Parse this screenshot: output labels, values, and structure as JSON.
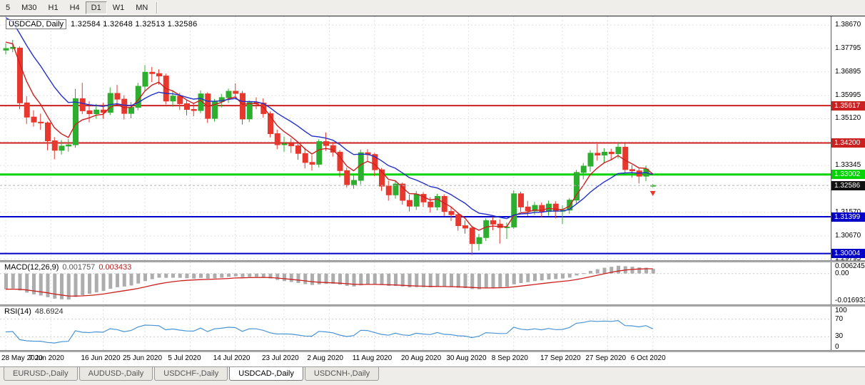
{
  "toolbar": {
    "timeframes": [
      {
        "label": "5",
        "active": false
      },
      {
        "label": "M30",
        "active": false
      },
      {
        "label": "H1",
        "active": false
      },
      {
        "label": "H4",
        "active": false
      },
      {
        "label": "D1",
        "active": true
      },
      {
        "label": "W1",
        "active": false
      },
      {
        "label": "MN",
        "active": false
      }
    ]
  },
  "chart": {
    "title_symbol": "USDCAD, Daily",
    "title_ohlc": "1.32584 1.32648 1.32513 1.32586"
  },
  "chart_data": {
    "type": "candlestick",
    "symbol": "USDCAD",
    "timeframe": "Daily",
    "colors": {
      "up": "#2eae2e",
      "down": "#e8382e",
      "ma_fast": "#cc2020",
      "ma_slow": "#2230c8",
      "hline_red": "#cc2020",
      "hline_green": "#00d400",
      "hline_blue": "#0000c8",
      "current_tag": "#111111",
      "macd_hist": "#adadad",
      "macd_signal": "#cc2020",
      "rsi_line": "#4a94d6",
      "grid": "#e0e0e0"
    },
    "main": {
      "ylim": [
        1.2975,
        1.39
      ],
      "axis_ticks": [
        "1.38670",
        "1.37795",
        "1.36895",
        "1.35995",
        "1.35120",
        "1.34245",
        "1.33345",
        "1.32470",
        "1.31570",
        "1.30670",
        "1.29795"
      ],
      "hlines": [
        {
          "price": 1.35617,
          "label": "1.35617",
          "color": "red",
          "width": 2
        },
        {
          "price": 1.342,
          "label": "1.34200",
          "color": "red",
          "width": 2
        },
        {
          "price": 1.33002,
          "label": "1.33002",
          "color": "green",
          "width": 3
        },
        {
          "price": 1.31399,
          "label": "1.31399",
          "color": "blue",
          "width": 2
        },
        {
          "price": 1.30004,
          "label": "1.30004",
          "color": "blue",
          "width": 2
        }
      ],
      "current_price": {
        "value": 1.32586,
        "label": "1.32586"
      },
      "arrow_marker": {
        "candle_index": 93
      },
      "x_labels": [
        {
          "label": "28 May 2020",
          "index": 0
        },
        {
          "label": "7 Jun 2020",
          "index": 6.5
        },
        {
          "label": "16 Jun 2020",
          "index": 14
        },
        {
          "label": "25 Jun 2020",
          "index": 20
        },
        {
          "label": "5 Jul 2020",
          "index": 26.5
        },
        {
          "label": "14 Jul 2020",
          "index": 33
        },
        {
          "label": "23 Jul 2020",
          "index": 40
        },
        {
          "label": "2 Aug 2020",
          "index": 46.5
        },
        {
          "label": "11 Aug 2020",
          "index": 53
        },
        {
          "label": "20 Aug 2020",
          "index": 60
        },
        {
          "label": "30 Aug 2020",
          "index": 66.5
        },
        {
          "label": "8 Sep 2020",
          "index": 73
        },
        {
          "label": "17 Sep 2020",
          "index": 80
        },
        {
          "label": "27 Sep 2020",
          "index": 86.5
        },
        {
          "label": "6 Oct 2020",
          "index": 93
        }
      ],
      "candles": [
        [
          1.3772,
          1.3798,
          1.3756,
          1.3778
        ],
        [
          1.3778,
          1.3811,
          1.3764,
          1.3783
        ],
        [
          1.378,
          1.3786,
          1.3548,
          1.3572
        ],
        [
          1.3572,
          1.3597,
          1.3492,
          1.3518
        ],
        [
          1.3518,
          1.3544,
          1.3482,
          1.3499
        ],
        [
          1.3499,
          1.3531,
          1.347,
          1.3496
        ],
        [
          1.3496,
          1.3501,
          1.3392,
          1.3428
        ],
        [
          1.3428,
          1.3442,
          1.3358,
          1.3392
        ],
        [
          1.3392,
          1.3431,
          1.3376,
          1.3408
        ],
        [
          1.3408,
          1.3435,
          1.3387,
          1.3413
        ],
        [
          1.3413,
          1.3625,
          1.3402,
          1.3588
        ],
        [
          1.3588,
          1.3648,
          1.3529,
          1.3542
        ],
        [
          1.3542,
          1.3578,
          1.3498,
          1.3531
        ],
        [
          1.3531,
          1.3568,
          1.3512,
          1.3545
        ],
        [
          1.3545,
          1.3572,
          1.3511,
          1.3536
        ],
        [
          1.3536,
          1.3631,
          1.3526,
          1.3608
        ],
        [
          1.3608,
          1.364,
          1.3564,
          1.3586
        ],
        [
          1.3586,
          1.3601,
          1.3509,
          1.3532
        ],
        [
          1.3532,
          1.3575,
          1.3513,
          1.3555
        ],
        [
          1.3555,
          1.3648,
          1.3544,
          1.3635
        ],
        [
          1.3635,
          1.3715,
          1.3618,
          1.3688
        ],
        [
          1.3688,
          1.3708,
          1.3651,
          1.3683
        ],
        [
          1.3683,
          1.3699,
          1.3641,
          1.3674
        ],
        [
          1.3674,
          1.3683,
          1.3566,
          1.3579
        ],
        [
          1.3579,
          1.3621,
          1.3557,
          1.3598
        ],
        [
          1.3598,
          1.361,
          1.3545,
          1.3569
        ],
        [
          1.3569,
          1.3583,
          1.3524,
          1.3547
        ],
        [
          1.3547,
          1.3572,
          1.3521,
          1.3543
        ],
        [
          1.3543,
          1.3619,
          1.3533,
          1.3606
        ],
        [
          1.3606,
          1.3612,
          1.3496,
          1.3513
        ],
        [
          1.3513,
          1.3587,
          1.3501,
          1.3577
        ],
        [
          1.3577,
          1.3606,
          1.3555,
          1.3592
        ],
        [
          1.3592,
          1.3626,
          1.3571,
          1.3616
        ],
        [
          1.3616,
          1.3646,
          1.3587,
          1.3608
        ],
        [
          1.3608,
          1.3617,
          1.349,
          1.3511
        ],
        [
          1.3511,
          1.3581,
          1.3499,
          1.3573
        ],
        [
          1.3573,
          1.3593,
          1.3548,
          1.3571
        ],
        [
          1.3571,
          1.3589,
          1.3516,
          1.3531
        ],
        [
          1.3531,
          1.3539,
          1.3441,
          1.3455
        ],
        [
          1.3455,
          1.347,
          1.3396,
          1.3413
        ],
        [
          1.3413,
          1.3444,
          1.3387,
          1.3416
        ],
        [
          1.3416,
          1.3438,
          1.3382,
          1.3409
        ],
        [
          1.3409,
          1.3417,
          1.3356,
          1.338
        ],
        [
          1.338,
          1.3402,
          1.3323,
          1.3346
        ],
        [
          1.3346,
          1.3374,
          1.3315,
          1.3339
        ],
        [
          1.3339,
          1.3434,
          1.3327,
          1.3425
        ],
        [
          1.3425,
          1.346,
          1.339,
          1.341
        ],
        [
          1.341,
          1.3424,
          1.3368,
          1.3385
        ],
        [
          1.3385,
          1.3393,
          1.329,
          1.3315
        ],
        [
          1.3315,
          1.3326,
          1.3251,
          1.3262
        ],
        [
          1.3262,
          1.3301,
          1.3246,
          1.3278
        ],
        [
          1.3278,
          1.3395,
          1.3262,
          1.3383
        ],
        [
          1.3383,
          1.3396,
          1.3351,
          1.3376
        ],
        [
          1.3376,
          1.3382,
          1.3294,
          1.3318
        ],
        [
          1.3318,
          1.3325,
          1.3238,
          1.3256
        ],
        [
          1.3256,
          1.3277,
          1.3201,
          1.3223
        ],
        [
          1.3223,
          1.3278,
          1.3209,
          1.3264
        ],
        [
          1.3264,
          1.327,
          1.3186,
          1.3202
        ],
        [
          1.3202,
          1.3224,
          1.316,
          1.318
        ],
        [
          1.318,
          1.3238,
          1.3166,
          1.3225
        ],
        [
          1.3225,
          1.3233,
          1.3177,
          1.3196
        ],
        [
          1.3196,
          1.3214,
          1.3156,
          1.3177
        ],
        [
          1.3177,
          1.3227,
          1.3164,
          1.3217
        ],
        [
          1.3217,
          1.3225,
          1.3143,
          1.316
        ],
        [
          1.316,
          1.3178,
          1.3124,
          1.3148
        ],
        [
          1.3148,
          1.3156,
          1.3087,
          1.3106
        ],
        [
          1.3106,
          1.3126,
          1.3076,
          1.3097
        ],
        [
          1.3097,
          1.3101,
          1.29948,
          1.3038
        ],
        [
          1.3038,
          1.3075,
          1.3012,
          1.3061
        ],
        [
          1.3061,
          1.3134,
          1.3048,
          1.3125
        ],
        [
          1.3125,
          1.3139,
          1.3089,
          1.3112
        ],
        [
          1.3112,
          1.313,
          1.3038,
          1.3099
        ],
        [
          1.3099,
          1.3118,
          1.3056,
          1.3101
        ],
        [
          1.3101,
          1.324,
          1.3094,
          1.3227
        ],
        [
          1.3227,
          1.3235,
          1.3159,
          1.3177
        ],
        [
          1.3177,
          1.32,
          1.3143,
          1.3162
        ],
        [
          1.3162,
          1.3196,
          1.3148,
          1.3183
        ],
        [
          1.3183,
          1.3194,
          1.3138,
          1.316
        ],
        [
          1.316,
          1.3201,
          1.3144,
          1.3188
        ],
        [
          1.3188,
          1.3199,
          1.3134,
          1.3161
        ],
        [
          1.3161,
          1.3183,
          1.3112,
          1.3165
        ],
        [
          1.3165,
          1.3211,
          1.3151,
          1.3203
        ],
        [
          1.3203,
          1.3318,
          1.319,
          1.3308
        ],
        [
          1.3308,
          1.3344,
          1.3282,
          1.3332
        ],
        [
          1.3332,
          1.3393,
          1.3311,
          1.3381
        ],
        [
          1.3381,
          1.3416,
          1.3353,
          1.3374
        ],
        [
          1.3374,
          1.34,
          1.3343,
          1.3385
        ],
        [
          1.3385,
          1.3398,
          1.3354,
          1.3379
        ],
        [
          1.3379,
          1.3421,
          1.3361,
          1.3404
        ],
        [
          1.3404,
          1.3418,
          1.3305,
          1.3319
        ],
        [
          1.3319,
          1.3336,
          1.3288,
          1.3314
        ],
        [
          1.3314,
          1.3323,
          1.3266,
          1.3294
        ],
        [
          1.3294,
          1.3334,
          1.3275,
          1.3321
        ],
        [
          1.32584,
          1.32648,
          1.32513,
          1.32586
        ]
      ]
    },
    "macd": {
      "label": "MACD(12,26,9)",
      "value_main": "0.001757",
      "value_signal": "0.003433",
      "ylim": [
        -0.0177,
        0.0068
      ],
      "axis_ticks": [
        {
          "v": 0.006245,
          "label": "0.006245"
        },
        {
          "v": 0.0,
          "label": "0.00"
        },
        {
          "v": -0.016933,
          "label": "-0.016933"
        }
      ]
    },
    "rsi": {
      "label": "RSI(14)",
      "value": "48.6924",
      "levels": [
        70,
        30
      ],
      "axis_ticks": [
        {
          "v": 100,
          "label": "100"
        },
        {
          "v": 70,
          "label": "70"
        },
        {
          "v": 30,
          "label": "30"
        },
        {
          "v": 0,
          "label": "0"
        }
      ]
    }
  },
  "tabs": [
    {
      "label": "EURUSD-,Daily",
      "active": false
    },
    {
      "label": "AUDUSD-,Daily",
      "active": false
    },
    {
      "label": "USDCHF-,Daily",
      "active": false
    },
    {
      "label": "USDCAD-,Daily",
      "active": true
    },
    {
      "label": "USDCNH-,Daily",
      "active": false
    }
  ]
}
